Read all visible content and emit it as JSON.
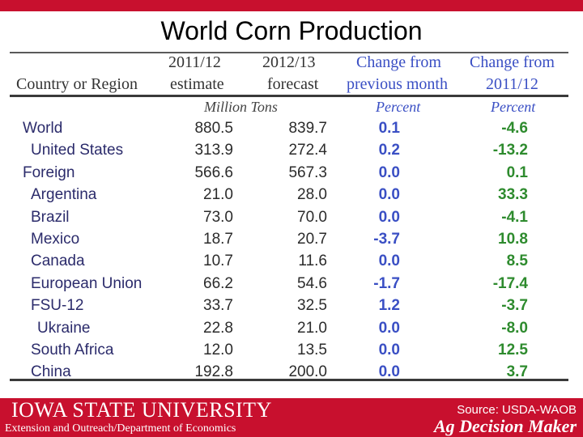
{
  "title": "World Corn Production",
  "table": {
    "headers": {
      "col1": "Country or Region",
      "col2_line1": "2011/12",
      "col2_line2": "estimate",
      "col3_line1": "2012/13",
      "col3_line2": "forecast",
      "col4_line1": "Change from",
      "col4_line2": "previous month",
      "col5_line1": "Change from",
      "col5_line2": "2011/12"
    },
    "units": {
      "tons": "Million Tons",
      "pct1": "Percent",
      "pct2": "Percent"
    },
    "rows": [
      {
        "name": "World",
        "est": "880.5",
        "fc": "839.7",
        "chg_month": "0.1",
        "chg_year": "-4.6",
        "indent": 0
      },
      {
        "name": "United States",
        "est": "313.9",
        "fc": "272.4",
        "chg_month": "0.2",
        "chg_year": "-13.2",
        "indent": 1
      },
      {
        "name": "Foreign",
        "est": "566.6",
        "fc": "567.3",
        "chg_month": "0.0",
        "chg_year": "0.1",
        "indent": 0
      },
      {
        "name": "Argentina",
        "est": "21.0",
        "fc": "28.0",
        "chg_month": "0.0",
        "chg_year": "33.3",
        "indent": 1
      },
      {
        "name": "Brazil",
        "est": "73.0",
        "fc": "70.0",
        "chg_month": "0.0",
        "chg_year": "-4.1",
        "indent": 1
      },
      {
        "name": "Mexico",
        "est": "18.7",
        "fc": "20.7",
        "chg_month": "-3.7",
        "chg_year": "10.8",
        "indent": 1
      },
      {
        "name": "Canada",
        "est": "10.7",
        "fc": "11.6",
        "chg_month": "0.0",
        "chg_year": "8.5",
        "indent": 1
      },
      {
        "name": "European Union",
        "est": "66.2",
        "fc": "54.6",
        "chg_month": "-1.7",
        "chg_year": "-17.4",
        "indent": 1
      },
      {
        "name": "FSU-12",
        "est": "33.7",
        "fc": "32.5",
        "chg_month": "1.2",
        "chg_year": "-3.7",
        "indent": 1
      },
      {
        "name": "Ukraine",
        "est": "22.8",
        "fc": "21.0",
        "chg_month": "0.0",
        "chg_year": "-8.0",
        "indent": 2
      },
      {
        "name": "South Africa",
        "est": "12.0",
        "fc": "13.5",
        "chg_month": "0.0",
        "chg_year": "12.5",
        "indent": 1
      },
      {
        "name": "China",
        "est": "192.8",
        "fc": "200.0",
        "chg_month": "0.0",
        "chg_year": "3.7",
        "indent": 1
      }
    ]
  },
  "footer": {
    "university": "IOWA STATE UNIVERSITY",
    "department": "Extension and Outreach/Department of Economics",
    "source": "Source: USDA-WAOB",
    "brand": "Ag Decision Maker"
  },
  "colors": {
    "brand_red": "#c8102e",
    "header_blue": "#3a4fc4",
    "positive_green": "#2e8b2e"
  }
}
